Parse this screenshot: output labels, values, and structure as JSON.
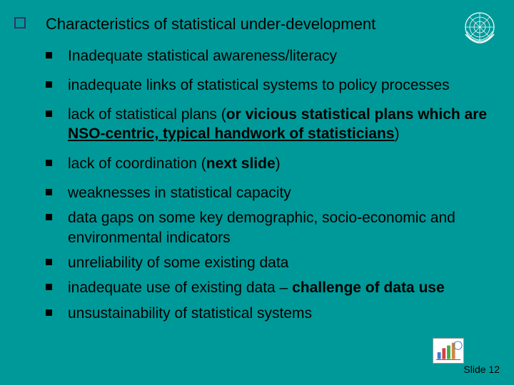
{
  "background_color": "#009999",
  "heading": "Characteristics of statistical under-development",
  "bullets": [
    {
      "parts": [
        {
          "t": "Inadequate statistical awareness/literacy"
        }
      ]
    },
    {
      "parts": [
        {
          "t": "inadequate links of statistical systems to policy processes"
        }
      ]
    },
    {
      "parts": [
        {
          "t": "lack of statistical plans ("
        },
        {
          "t": "or vicious statistical plans which are ",
          "bold": true
        },
        {
          "t": "NSO-centric, typical handwork of statisticians",
          "bold": true,
          "underline": true
        },
        {
          "t": ")"
        }
      ]
    },
    {
      "parts": [
        {
          "t": "lack of coordination ("
        },
        {
          "t": "next slide",
          "bold": true
        },
        {
          "t": ")"
        }
      ]
    },
    {
      "parts": [
        {
          "t": "weaknesses in statistical capacity"
        }
      ],
      "tight": true
    },
    {
      "parts": [
        {
          "t": "data gaps on some key demographic, socio-economic and environmental indicators"
        }
      ],
      "tight": true
    },
    {
      "parts": [
        {
          "t": "unreliability of some existing data"
        }
      ],
      "tight": true
    },
    {
      "parts": [
        {
          "t": "inadequate use of existing data – "
        },
        {
          "t": "challenge of data use",
          "bold": true
        }
      ],
      "tight": true
    },
    {
      "parts": [
        {
          "t": "unsustainability of statistical systems"
        }
      ],
      "tight": true
    }
  ],
  "slide_number": "Slide 12",
  "bullet_color": "#000000",
  "checkbox_border_color": "#333366",
  "text_color": "#000000",
  "heading_fontsize": 22,
  "bullet_fontsize": 21,
  "slidenum_fontsize": 14
}
